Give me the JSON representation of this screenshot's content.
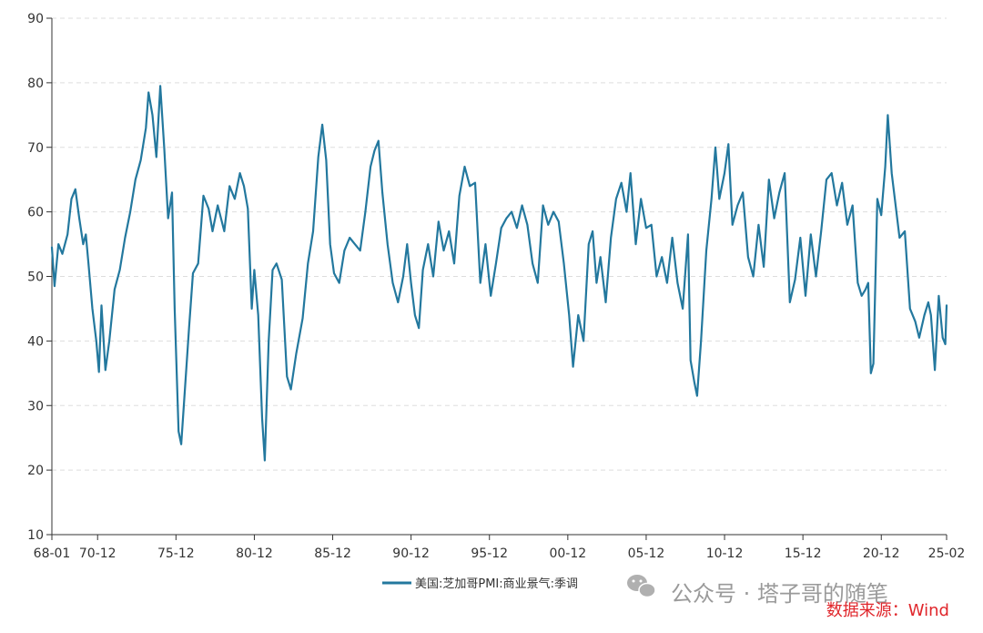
{
  "chart_data": {
    "type": "line",
    "ylim": [
      10,
      90
    ],
    "yticks": [
      10,
      20,
      30,
      40,
      50,
      60,
      70,
      80,
      90
    ],
    "xtick_labels": [
      "68-01",
      "70-12",
      "75-12",
      "80-12",
      "85-12",
      "90-12",
      "95-12",
      "00-12",
      "05-12",
      "10-12",
      "15-12",
      "20-12",
      "25-02"
    ],
    "xtick_dates": [
      "1968-01",
      "1970-12",
      "1975-12",
      "1980-12",
      "1985-12",
      "1990-12",
      "1995-12",
      "2000-12",
      "2005-12",
      "2010-12",
      "2015-12",
      "2020-12",
      "2025-02"
    ],
    "grid": "horizontal dashed",
    "legend_position": "bottom-center",
    "series": [
      {
        "name": "美国:芝加哥PMI:商业景气:季调",
        "color": "#23789e",
        "points": [
          [
            "1968-01",
            54.5
          ],
          [
            "1968-03",
            48.5
          ],
          [
            "1968-06",
            55.0
          ],
          [
            "1968-09",
            53.5
          ],
          [
            "1969-01",
            56.5
          ],
          [
            "1969-04",
            62.0
          ],
          [
            "1969-07",
            63.5
          ],
          [
            "1969-10",
            59.0
          ],
          [
            "1970-01",
            55.0
          ],
          [
            "1970-03",
            56.5
          ],
          [
            "1970-05",
            52.0
          ],
          [
            "1970-08",
            45.0
          ],
          [
            "1970-11",
            40.0
          ],
          [
            "1971-01",
            35.2
          ],
          [
            "1971-03",
            45.5
          ],
          [
            "1971-06",
            35.5
          ],
          [
            "1971-09",
            40.0
          ],
          [
            "1972-01",
            48.0
          ],
          [
            "1972-05",
            51.0
          ],
          [
            "1972-09",
            56.0
          ],
          [
            "1973-01",
            60.0
          ],
          [
            "1973-05",
            65.0
          ],
          [
            "1973-09",
            68.0
          ],
          [
            "1974-01",
            73.0
          ],
          [
            "1974-03",
            78.5
          ],
          [
            "1974-06",
            75.0
          ],
          [
            "1974-09",
            68.5
          ],
          [
            "1974-12",
            79.5
          ],
          [
            "1975-03",
            70.0
          ],
          [
            "1975-06",
            59.0
          ],
          [
            "1975-09",
            63.0
          ],
          [
            "1975-11",
            45.0
          ],
          [
            "1976-02",
            26.0
          ],
          [
            "1976-04",
            24.0
          ],
          [
            "1976-07",
            33.0
          ],
          [
            "1976-10",
            42.0
          ],
          [
            "1977-01",
            50.5
          ],
          [
            "1977-05",
            52.0
          ],
          [
            "1977-09",
            62.5
          ],
          [
            "1978-01",
            60.5
          ],
          [
            "1978-04",
            57.0
          ],
          [
            "1978-08",
            61.0
          ],
          [
            "1979-01",
            57.0
          ],
          [
            "1979-05",
            64.0
          ],
          [
            "1979-09",
            62.0
          ],
          [
            "1980-01",
            66.0
          ],
          [
            "1980-04",
            64.0
          ],
          [
            "1980-07",
            60.5
          ],
          [
            "1980-10",
            45.0
          ],
          [
            "1980-12",
            51.0
          ],
          [
            "1981-03",
            44.0
          ],
          [
            "1981-06",
            28.0
          ],
          [
            "1981-08",
            21.5
          ],
          [
            "1981-11",
            40.0
          ],
          [
            "1982-02",
            51.0
          ],
          [
            "1982-05",
            52.0
          ],
          [
            "1982-09",
            49.5
          ],
          [
            "1983-01",
            34.5
          ],
          [
            "1983-04",
            32.5
          ],
          [
            "1983-08",
            38.0
          ],
          [
            "1984-01",
            43.5
          ],
          [
            "1984-05",
            52.0
          ],
          [
            "1984-09",
            57.0
          ],
          [
            "1985-01",
            68.5
          ],
          [
            "1985-04",
            73.5
          ],
          [
            "1985-07",
            68.0
          ],
          [
            "1985-10",
            55.0
          ],
          [
            "1986-01",
            50.5
          ],
          [
            "1986-05",
            49.0
          ],
          [
            "1986-09",
            54.0
          ],
          [
            "1987-01",
            56.0
          ],
          [
            "1987-05",
            55.0
          ],
          [
            "1987-09",
            54.0
          ],
          [
            "1988-01",
            60.0
          ],
          [
            "1988-05",
            67.0
          ],
          [
            "1988-08",
            69.5
          ],
          [
            "1988-11",
            71.0
          ],
          [
            "1989-02",
            63.0
          ],
          [
            "1989-06",
            55.0
          ],
          [
            "1989-10",
            49.0
          ],
          [
            "1990-02",
            46.0
          ],
          [
            "1990-06",
            50.0
          ],
          [
            "1990-09",
            55.0
          ],
          [
            "1990-12",
            49.0
          ],
          [
            "1991-03",
            44.0
          ],
          [
            "1991-06",
            42.0
          ],
          [
            "1991-09",
            51.0
          ],
          [
            "1992-01",
            55.0
          ],
          [
            "1992-05",
            50.0
          ],
          [
            "1992-09",
            58.5
          ],
          [
            "1993-01",
            54.0
          ],
          [
            "1993-05",
            57.0
          ],
          [
            "1993-09",
            52.0
          ],
          [
            "1994-01",
            62.5
          ],
          [
            "1994-05",
            67.0
          ],
          [
            "1994-09",
            64.0
          ],
          [
            "1995-01",
            64.5
          ],
          [
            "1995-05",
            49.0
          ],
          [
            "1995-09",
            55.0
          ],
          [
            "1996-01",
            47.0
          ],
          [
            "1996-05",
            52.0
          ],
          [
            "1996-09",
            57.5
          ],
          [
            "1997-01",
            59.0
          ],
          [
            "1997-05",
            60.0
          ],
          [
            "1997-09",
            57.5
          ],
          [
            "1998-01",
            61.0
          ],
          [
            "1998-05",
            58.0
          ],
          [
            "1998-09",
            52.0
          ],
          [
            "1999-01",
            49.0
          ],
          [
            "1999-05",
            61.0
          ],
          [
            "1999-09",
            58.0
          ],
          [
            "2000-01",
            60.0
          ],
          [
            "2000-05",
            58.5
          ],
          [
            "2000-09",
            52.0
          ],
          [
            "2001-01",
            44.0
          ],
          [
            "2001-04",
            36.0
          ],
          [
            "2001-08",
            44.0
          ],
          [
            "2001-12",
            40.0
          ],
          [
            "2002-04",
            55.0
          ],
          [
            "2002-07",
            57.0
          ],
          [
            "2002-10",
            49.0
          ],
          [
            "2003-01",
            53.0
          ],
          [
            "2003-05",
            46.0
          ],
          [
            "2003-09",
            56.0
          ],
          [
            "2004-01",
            62.0
          ],
          [
            "2004-05",
            64.5
          ],
          [
            "2004-09",
            60.0
          ],
          [
            "2004-12",
            66.0
          ],
          [
            "2005-04",
            55.0
          ],
          [
            "2005-08",
            62.0
          ],
          [
            "2005-12",
            57.5
          ],
          [
            "2006-04",
            58.0
          ],
          [
            "2006-08",
            50.0
          ],
          [
            "2006-12",
            53.0
          ],
          [
            "2007-04",
            49.0
          ],
          [
            "2007-08",
            56.0
          ],
          [
            "2007-12",
            49.0
          ],
          [
            "2008-04",
            45.0
          ],
          [
            "2008-08",
            56.5
          ],
          [
            "2008-10",
            37.0
          ],
          [
            "2009-01",
            33.5
          ],
          [
            "2009-03",
            31.5
          ],
          [
            "2009-06",
            40.0
          ],
          [
            "2009-10",
            54.0
          ],
          [
            "2010-02",
            62.0
          ],
          [
            "2010-05",
            70.0
          ],
          [
            "2010-08",
            62.0
          ],
          [
            "2010-12",
            66.0
          ],
          [
            "2011-03",
            70.5
          ],
          [
            "2011-06",
            58.0
          ],
          [
            "2011-10",
            61.0
          ],
          [
            "2012-02",
            63.0
          ],
          [
            "2012-06",
            53.0
          ],
          [
            "2012-10",
            50.0
          ],
          [
            "2013-02",
            58.0
          ],
          [
            "2013-06",
            51.5
          ],
          [
            "2013-10",
            65.0
          ],
          [
            "2014-02",
            59.0
          ],
          [
            "2014-06",
            63.0
          ],
          [
            "2014-10",
            66.0
          ],
          [
            "2015-02",
            46.0
          ],
          [
            "2015-06",
            49.5
          ],
          [
            "2015-10",
            56.0
          ],
          [
            "2016-02",
            47.0
          ],
          [
            "2016-06",
            56.5
          ],
          [
            "2016-10",
            50.0
          ],
          [
            "2017-02",
            57.0
          ],
          [
            "2017-06",
            65.0
          ],
          [
            "2017-10",
            66.0
          ],
          [
            "2018-02",
            61.0
          ],
          [
            "2018-06",
            64.5
          ],
          [
            "2018-10",
            58.0
          ],
          [
            "2019-02",
            61.0
          ],
          [
            "2019-06",
            49.0
          ],
          [
            "2019-09",
            47.0
          ],
          [
            "2019-12",
            48.0
          ],
          [
            "2020-02",
            49.0
          ],
          [
            "2020-04",
            35.0
          ],
          [
            "2020-06",
            36.5
          ],
          [
            "2020-09",
            62.0
          ],
          [
            "2020-12",
            59.5
          ],
          [
            "2021-03",
            67.0
          ],
          [
            "2021-05",
            75.0
          ],
          [
            "2021-08",
            66.0
          ],
          [
            "2021-11",
            61.0
          ],
          [
            "2022-02",
            56.0
          ],
          [
            "2022-06",
            57.0
          ],
          [
            "2022-10",
            45.0
          ],
          [
            "2023-02",
            43.0
          ],
          [
            "2023-05",
            40.5
          ],
          [
            "2023-09",
            44.0
          ],
          [
            "2023-12",
            46.0
          ],
          [
            "2024-02",
            44.0
          ],
          [
            "2024-05",
            35.5
          ],
          [
            "2024-08",
            47.0
          ],
          [
            "2024-11",
            40.5
          ],
          [
            "2025-01",
            39.5
          ],
          [
            "2025-02",
            45.5
          ]
        ]
      }
    ]
  },
  "watermark": "公众号 · 塔子哥的随笔",
  "source": "数据来源：Wind"
}
